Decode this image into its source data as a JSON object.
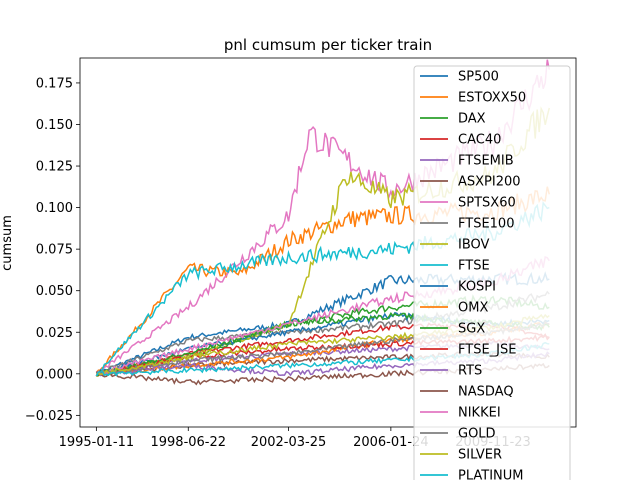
{
  "chart_data": {
    "type": "line",
    "title": "pnl cumsum per ticker train",
    "xlabel": "",
    "ylabel": "cumsum",
    "xlim": [
      "1994-06-01",
      "2013-01-01"
    ],
    "ylim": [
      -0.032,
      0.19
    ],
    "x_ticks": [
      "1995-01-11",
      "1998-06-22",
      "2002-03-25",
      "2006-01-24",
      "2009-11-23"
    ],
    "y_ticks": [
      -0.025,
      0.0,
      0.025,
      0.05,
      0.075,
      0.1,
      0.125,
      0.15,
      0.175
    ],
    "y_tick_labels": [
      "−0.025",
      "0.000",
      "0.025",
      "0.050",
      "0.075",
      "0.100",
      "0.125",
      "0.150",
      "0.175"
    ],
    "grid": false,
    "legend_position": "upper-right",
    "series": [
      {
        "name": "SP500",
        "color": "#1f77b4",
        "x": [
          "1995-01-11",
          "1998-06-22",
          "2002-03-25",
          "2006-01-24",
          "2009-11-23",
          "2012-01-01"
        ],
        "values": [
          0,
          0.022,
          0.03,
          0.056,
          0.057,
          0.057
        ]
      },
      {
        "name": "ESTOXX50",
        "color": "#ff7f0e",
        "x": [
          "1995-01-11",
          "1996-06-01",
          "1998-06-22",
          "2000-06-01",
          "2002-03-25",
          "2004-06-01",
          "2006-01-24",
          "2009-11-23",
          "2012-01-01"
        ],
        "values": [
          0,
          0.025,
          0.063,
          0.06,
          0.08,
          0.093,
          0.095,
          0.098,
          0.108
        ]
      },
      {
        "name": "DAX",
        "color": "#2ca02c",
        "x": [
          "1995-01-11",
          "1998-06-22",
          "2002-03-25",
          "2006-01-24",
          "2009-11-23",
          "2012-01-01"
        ],
        "values": [
          0,
          0.01,
          0.03,
          0.04,
          0.045,
          0.04
        ]
      },
      {
        "name": "CAC40",
        "color": "#d62728",
        "x": [
          "1995-01-11",
          "1998-06-22",
          "2002-03-25",
          "2006-01-24",
          "2009-11-23",
          "2012-01-01"
        ],
        "values": [
          0,
          0.012,
          0.02,
          0.028,
          0.03,
          0.022
        ]
      },
      {
        "name": "FTSEMIB",
        "color": "#9467bd",
        "x": [
          "1995-01-11",
          "1998-06-22",
          "2002-03-25",
          "2006-01-24",
          "2009-11-23",
          "2012-01-01"
        ],
        "values": [
          0,
          0.008,
          0.012,
          0.015,
          0.018,
          0.015
        ]
      },
      {
        "name": "ASXPI200",
        "color": "#8c564b",
        "x": [
          "1995-01-11",
          "1998-06-22",
          "2002-03-25",
          "2006-01-24",
          "2009-11-23",
          "2012-01-01"
        ],
        "values": [
          0,
          0.005,
          0.008,
          0.01,
          0.012,
          0.01
        ]
      },
      {
        "name": "SPTSX60",
        "color": "#e377c2",
        "x": [
          "1995-01-11",
          "1998-06-22",
          "2002-03-25",
          "2003-01-01",
          "2006-01-24",
          "2009-11-23",
          "2012-01-01"
        ],
        "values": [
          0,
          0.04,
          0.095,
          0.145,
          0.11,
          0.14,
          0.183
        ]
      },
      {
        "name": "FTSE100",
        "color": "#7f7f7f",
        "x": [
          "1995-01-11",
          "1998-06-22",
          "2002-03-25",
          "2006-01-24",
          "2009-11-23",
          "2012-01-01"
        ],
        "values": [
          0,
          0.02,
          0.025,
          0.03,
          0.04,
          0.048
        ]
      },
      {
        "name": "IBOV",
        "color": "#bcbd22",
        "x": [
          "1995-01-11",
          "1998-06-22",
          "2002-03-25",
          "2004-06-01",
          "2006-01-24",
          "2009-11-23",
          "2012-01-01"
        ],
        "values": [
          0,
          0.01,
          0.03,
          0.12,
          0.105,
          0.12,
          0.16
        ]
      },
      {
        "name": "FTSE",
        "color": "#17becf",
        "x": [
          "1995-01-11",
          "1998-06-22",
          "2002-03-25",
          "2006-01-24",
          "2009-11-23",
          "2012-01-01"
        ],
        "values": [
          0,
          0.06,
          0.07,
          0.075,
          0.085,
          0.1
        ]
      },
      {
        "name": "KOSPI",
        "color": "#1f77b4",
        "x": [
          "1995-01-11",
          "1998-06-22",
          "2002-03-25",
          "2006-01-24",
          "2009-11-23",
          "2012-01-01"
        ],
        "values": [
          0,
          0.015,
          0.025,
          0.035,
          0.03,
          0.032
        ]
      },
      {
        "name": "OMX",
        "color": "#ff7f0e",
        "x": [
          "1995-01-11",
          "1998-06-22",
          "2002-03-25",
          "2006-01-24",
          "2009-11-23",
          "2012-01-01"
        ],
        "values": [
          0,
          0.005,
          0.01,
          0.02,
          0.025,
          0.03
        ]
      },
      {
        "name": "SGX",
        "color": "#2ca02c",
        "x": [
          "1995-01-11",
          "1998-06-22",
          "2002-03-25",
          "2006-01-24",
          "2009-11-23",
          "2012-01-01"
        ],
        "values": [
          0,
          0.012,
          0.03,
          0.035,
          0.03,
          0.028
        ]
      },
      {
        "name": "FTSE_JSE",
        "color": "#d62728",
        "x": [
          "1995-01-11",
          "1998-06-22",
          "2002-03-25",
          "2006-01-24",
          "2009-11-23",
          "2012-01-01"
        ],
        "values": [
          0,
          0.01,
          0.015,
          0.018,
          0.02,
          0.022
        ]
      },
      {
        "name": "RTS",
        "color": "#9467bd",
        "x": [
          "1995-01-11",
          "1998-06-22",
          "2002-03-25",
          "2006-01-24",
          "2009-11-23",
          "2012-01-01"
        ],
        "values": [
          0,
          0.005,
          0.0,
          0.005,
          0.008,
          0.012
        ]
      },
      {
        "name": "NASDAQ",
        "color": "#8c564b",
        "x": [
          "1995-01-11",
          "1998-06-22",
          "2002-03-25",
          "2006-01-24",
          "2009-11-23",
          "2012-01-01"
        ],
        "values": [
          0,
          -0.005,
          -0.003,
          0.0,
          0.003,
          0.005
        ]
      },
      {
        "name": "NIKKEI",
        "color": "#e377c2",
        "x": [
          "1995-01-11",
          "1998-06-22",
          "2002-03-25",
          "2006-01-24",
          "2009-11-23",
          "2012-01-01"
        ],
        "values": [
          0,
          0.015,
          0.03,
          0.045,
          0.055,
          0.068
        ]
      },
      {
        "name": "GOLD",
        "color": "#7f7f7f",
        "x": [
          "1995-01-11",
          "1998-06-22",
          "2002-03-25",
          "2006-01-24",
          "2009-11-23",
          "2012-01-01"
        ],
        "values": [
          0,
          0.008,
          0.012,
          0.02,
          0.025,
          0.03
        ]
      },
      {
        "name": "SILVER",
        "color": "#bcbd22",
        "x": [
          "1995-01-11",
          "1998-06-22",
          "2002-03-25",
          "2006-01-24",
          "2009-11-23",
          "2012-01-01"
        ],
        "values": [
          0,
          0.01,
          0.018,
          0.022,
          0.028,
          0.035
        ]
      },
      {
        "name": "PLATINUM",
        "color": "#17becf",
        "x": [
          "1995-01-11",
          "1998-06-22",
          "2002-03-25",
          "2006-01-24",
          "2009-11-23",
          "2012-01-01"
        ],
        "values": [
          0,
          0.002,
          0.005,
          0.008,
          0.012,
          0.018
        ]
      }
    ]
  }
}
